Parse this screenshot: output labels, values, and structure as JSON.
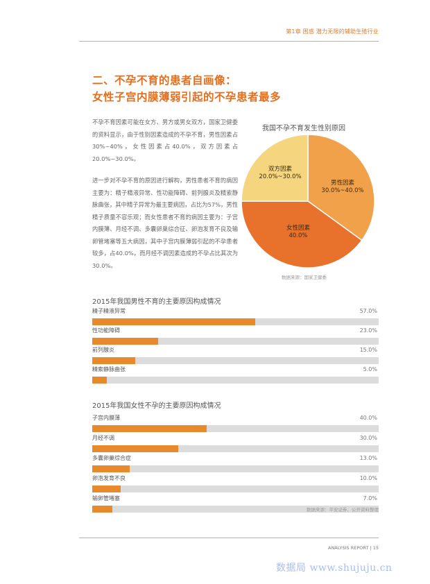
{
  "header": {
    "text": "第1章 困惑 潜力无限的辅助生殖行业"
  },
  "title": {
    "line1": "二、不孕不育的患者自画像：",
    "line2": "女性子宫内膜薄弱引起的不孕患者最多"
  },
  "paragraphs": [
    "不孕不育因素可能在女方、男方或男女双方，国家卫健委的资料显示，由于性别因素造成的不孕不育，男性因素占30%~40%，女性因素占40.0%，双方因素占20.0%~30.0%。",
    "进一步对不孕不育的原因进行解构，男性患者不育的病因主要为：精子精液异常、性功能障碍、前列腺炎及精索静脉曲张，其中精子异常为最主要病因，占比为57%，男性精子质量不容乐观；而女性患者不育的病因主要为：子宫内膜薄、月经不调、多囊卵巢综合征、卵泡发育不良及输卵管堵塞等五大病因，其中子宫内膜薄弱引起的不孕患者较多，占40.0%，而月经不调因素造成的不孕占比其次为30.0%。"
  ],
  "pie": {
    "title": "我国不孕不育发生性别原因",
    "source": "数据来源：国家卫健委",
    "slices": [
      {
        "name": "男性因素",
        "value_label": "30.0%~40.0%",
        "value": 35,
        "color": "#f0a14a"
      },
      {
        "name": "女性因素",
        "value_label": "40.0%",
        "value": 40,
        "color": "#e8712b"
      },
      {
        "name": "双方因素",
        "value_label": "20.0%~30.0%",
        "value": 25,
        "color": "#f5d57e"
      }
    ]
  },
  "male_bars": {
    "title": "2015年我国男性不育的主要原因构成情况",
    "items": [
      {
        "label": "精子精液异常",
        "value": 57,
        "value_label": "57.0%"
      },
      {
        "label": "性功能障碍",
        "value": 23,
        "value_label": "23.0%"
      },
      {
        "label": "前列腺炎",
        "value": 15,
        "value_label": "15.0%"
      },
      {
        "label": "精索静脉曲张",
        "value": 5,
        "value_label": "5.0%"
      }
    ]
  },
  "female_bars": {
    "title": "2015年我国女性不孕的主要原因构成情况",
    "items": [
      {
        "label": "子宫内膜薄",
        "value": 40,
        "value_label": "40.0%"
      },
      {
        "label": "月经不调",
        "value": 30,
        "value_label": "30.0%"
      },
      {
        "label": "多囊卵巢综合症",
        "value": 13,
        "value_label": "13.0%"
      },
      {
        "label": "卵泡发育不良",
        "value": 10,
        "value_label": "10.0%"
      },
      {
        "label": "输卵管堵塞",
        "value": 7,
        "value_label": "7.0%"
      }
    ]
  },
  "bar_source": "数据来源：平安证券、公开资料整理",
  "footer": {
    "text": "ANALYSIS REPORT | 15"
  },
  "watermark": "数据局 www.shujuju.cn",
  "colors": {
    "accent": "#e46f1e",
    "bar_fill": "#e8892e",
    "bar_track": "#dcdcdc"
  }
}
